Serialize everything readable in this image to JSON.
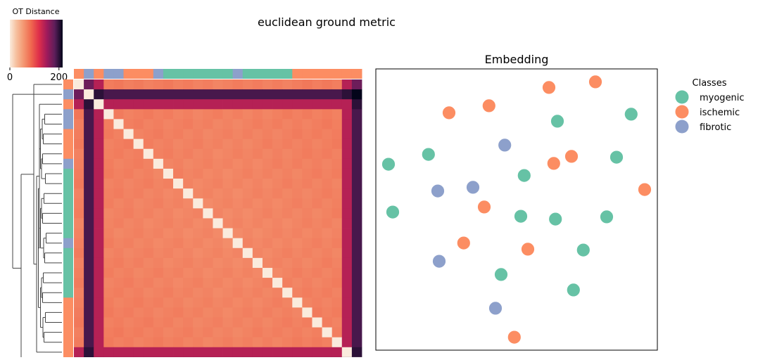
{
  "figure": {
    "title": "euclidean ground metric"
  },
  "chart_data": [
    {
      "type": "heatmap",
      "name": "clustermap",
      "colorbar": {
        "title": "OT Distance",
        "ticks": [
          0,
          200
        ],
        "range": [
          0,
          215
        ]
      },
      "samples": 29,
      "row_order_classes": [
        "ischemic",
        "fibrotic",
        "ischemic",
        "fibrotic",
        "fibrotic",
        "ischemic",
        "ischemic",
        "ischemic",
        "fibrotic",
        "myogenic",
        "myogenic",
        "myogenic",
        "myogenic",
        "myogenic",
        "myogenic",
        "myogenic",
        "fibrotic",
        "myogenic",
        "myogenic",
        "myogenic",
        "myogenic",
        "myogenic",
        "ischemic",
        "ischemic",
        "ischemic",
        "ischemic",
        "ischemic",
        "ischemic",
        "ischemic"
      ],
      "col_order_classes": [
        "ischemic",
        "fibrotic",
        "ischemic",
        "fibrotic",
        "fibrotic",
        "ischemic",
        "ischemic",
        "ischemic",
        "fibrotic",
        "myogenic",
        "myogenic",
        "myogenic",
        "myogenic",
        "myogenic",
        "myogenic",
        "myogenic",
        "fibrotic",
        "myogenic",
        "myogenic",
        "myogenic",
        "myogenic",
        "myogenic",
        "ischemic",
        "ischemic",
        "ischemic",
        "ischemic",
        "ischemic",
        "ischemic",
        "ischemic"
      ],
      "outlier_rows": {
        "index_far_1": 1,
        "index_mid_2": 2,
        "index_mid_27": 27,
        "index_far_28": 28
      },
      "typical_distance": 75,
      "outlier_distance_far": 190,
      "outlier_distance_mid": 140
    },
    {
      "type": "scatter",
      "title": "Embedding",
      "legend": {
        "title": "Classes",
        "placement": "outside-right",
        "entries": [
          {
            "name": "myogenic",
            "color": "#66c2a5"
          },
          {
            "name": "ischemic",
            "color": "#fc8d62"
          },
          {
            "name": "fibrotic",
            "color": "#8da0cb"
          }
        ]
      },
      "xlim": [
        0,
        100
      ],
      "ylim": [
        0,
        100
      ],
      "points": [
        {
          "x": 61.5,
          "y": 93.4,
          "c": "ischemic"
        },
        {
          "x": 78.0,
          "y": 95.4,
          "c": "ischemic"
        },
        {
          "x": 26.0,
          "y": 84.4,
          "c": "ischemic"
        },
        {
          "x": 40.2,
          "y": 86.9,
          "c": "ischemic"
        },
        {
          "x": 64.5,
          "y": 81.4,
          "c": "myogenic"
        },
        {
          "x": 90.7,
          "y": 83.9,
          "c": "myogenic"
        },
        {
          "x": 45.8,
          "y": 72.9,
          "c": "fibrotic"
        },
        {
          "x": 18.7,
          "y": 69.6,
          "c": "myogenic"
        },
        {
          "x": 4.5,
          "y": 66.1,
          "c": "myogenic"
        },
        {
          "x": 69.5,
          "y": 68.9,
          "c": "ischemic"
        },
        {
          "x": 63.2,
          "y": 66.4,
          "c": "ischemic"
        },
        {
          "x": 85.5,
          "y": 68.6,
          "c": "myogenic"
        },
        {
          "x": 52.7,
          "y": 62.1,
          "c": "myogenic"
        },
        {
          "x": 34.5,
          "y": 57.9,
          "c": "fibrotic"
        },
        {
          "x": 22.0,
          "y": 56.6,
          "c": "fibrotic"
        },
        {
          "x": 95.5,
          "y": 57.1,
          "c": "ischemic"
        },
        {
          "x": 38.5,
          "y": 50.9,
          "c": "ischemic"
        },
        {
          "x": 6.0,
          "y": 49.1,
          "c": "myogenic"
        },
        {
          "x": 51.5,
          "y": 47.6,
          "c": "myogenic"
        },
        {
          "x": 63.8,
          "y": 46.6,
          "c": "myogenic"
        },
        {
          "x": 82.0,
          "y": 47.4,
          "c": "myogenic"
        },
        {
          "x": 31.2,
          "y": 38.1,
          "c": "ischemic"
        },
        {
          "x": 54.0,
          "y": 35.9,
          "c": "ischemic"
        },
        {
          "x": 73.7,
          "y": 35.6,
          "c": "myogenic"
        },
        {
          "x": 22.5,
          "y": 31.6,
          "c": "fibrotic"
        },
        {
          "x": 44.5,
          "y": 26.9,
          "c": "myogenic"
        },
        {
          "x": 70.2,
          "y": 21.4,
          "c": "myogenic"
        },
        {
          "x": 42.5,
          "y": 14.9,
          "c": "fibrotic"
        },
        {
          "x": 49.2,
          "y": 4.6,
          "c": "ischemic"
        }
      ]
    }
  ]
}
